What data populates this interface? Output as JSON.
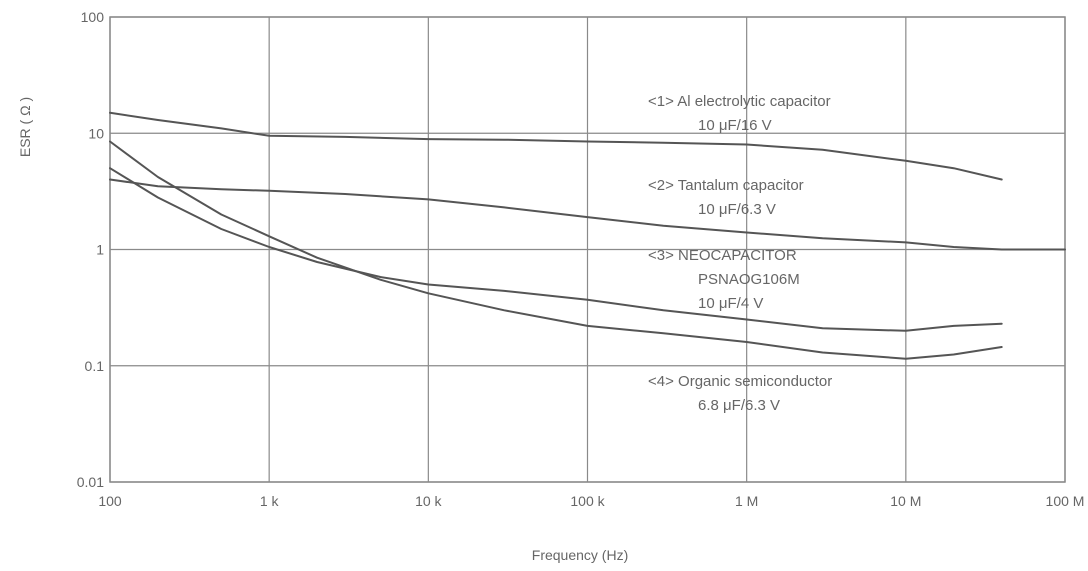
{
  "chart_data": {
    "type": "line",
    "title": "",
    "xlabel": "Frequency (Hz)",
    "ylabel": "ESR ( Ω )",
    "x_scale": "log",
    "y_scale": "log",
    "xlim": [
      100,
      100000000
    ],
    "ylim": [
      0.01,
      100
    ],
    "grid": true,
    "x_ticks": [
      {
        "value": 100,
        "label": "100"
      },
      {
        "value": 1000,
        "label": "1 k"
      },
      {
        "value": 10000,
        "label": "10 k"
      },
      {
        "value": 100000,
        "label": "100 k"
      },
      {
        "value": 1000000,
        "label": "1 M"
      },
      {
        "value": 10000000,
        "label": "10 M"
      },
      {
        "value": 100000000,
        "label": "100 M"
      }
    ],
    "y_ticks": [
      {
        "value": 100,
        "label": "100"
      },
      {
        "value": 10,
        "label": "10"
      },
      {
        "value": 1,
        "label": "1"
      },
      {
        "value": 0.1,
        "label": "0.1"
      },
      {
        "value": 0.01,
        "label": "0.01"
      }
    ],
    "series": [
      {
        "name": "<1> Al electrolytic capacitor 10 μF/16 V",
        "x": [
          100,
          200,
          500,
          1000,
          3000,
          10000,
          30000,
          100000,
          300000,
          1000000,
          3000000,
          10000000,
          20000000,
          40000000
        ],
        "y": [
          15,
          13,
          11,
          9.5,
          9.3,
          8.9,
          8.8,
          8.5,
          8.3,
          8.0,
          7.2,
          5.8,
          5.0,
          4.0
        ]
      },
      {
        "name": "<2> Tantalum capacitor 10 μF/6.3 V",
        "x": [
          100,
          200,
          500,
          1000,
          3000,
          10000,
          30000,
          100000,
          300000,
          1000000,
          3000000,
          10000000,
          20000000,
          40000000,
          100000000
        ],
        "y": [
          4.0,
          3.5,
          3.3,
          3.2,
          3.0,
          2.7,
          2.3,
          1.9,
          1.6,
          1.4,
          1.25,
          1.15,
          1.05,
          1.0,
          1.0
        ]
      },
      {
        "name": "<3> NEOCAPACITOR PSNAOG106M 10 μF/4 V",
        "x": [
          100,
          200,
          500,
          1000,
          2000,
          5000,
          10000,
          30000,
          100000,
          300000,
          1000000,
          3000000,
          10000000,
          20000000,
          40000000
        ],
        "y": [
          5.0,
          2.8,
          1.5,
          1.05,
          0.78,
          0.58,
          0.5,
          0.44,
          0.37,
          0.3,
          0.25,
          0.21,
          0.2,
          0.22,
          0.23
        ]
      },
      {
        "name": "<4> Organic semiconductor 6.8 μF/6.3 V",
        "x": [
          100,
          200,
          500,
          1000,
          2000,
          5000,
          10000,
          30000,
          100000,
          300000,
          1000000,
          3000000,
          10000000,
          20000000,
          40000000
        ],
        "y": [
          8.5,
          4.2,
          2.0,
          1.3,
          0.85,
          0.55,
          0.42,
          0.3,
          0.22,
          0.19,
          0.16,
          0.13,
          0.115,
          0.125,
          0.145
        ]
      }
    ],
    "annotations": [
      {
        "lines": [
          "<1>  Al electrolytic capacitor",
          "10 μF/16 V"
        ]
      },
      {
        "lines": [
          "<2>  Tantalum capacitor",
          "10 μF/6.3 V"
        ]
      },
      {
        "lines": [
          "<3>  NEOCAPACITOR",
          "PSNAOG106M",
          "10 μF/4 V"
        ]
      },
      {
        "lines": [
          "<4>  Organic semiconductor",
          "6.8 μF/6.3 V"
        ]
      }
    ]
  },
  "style": {
    "line_color": "#555555",
    "grid_color": "#8a8a8a",
    "text_color": "#666666"
  }
}
